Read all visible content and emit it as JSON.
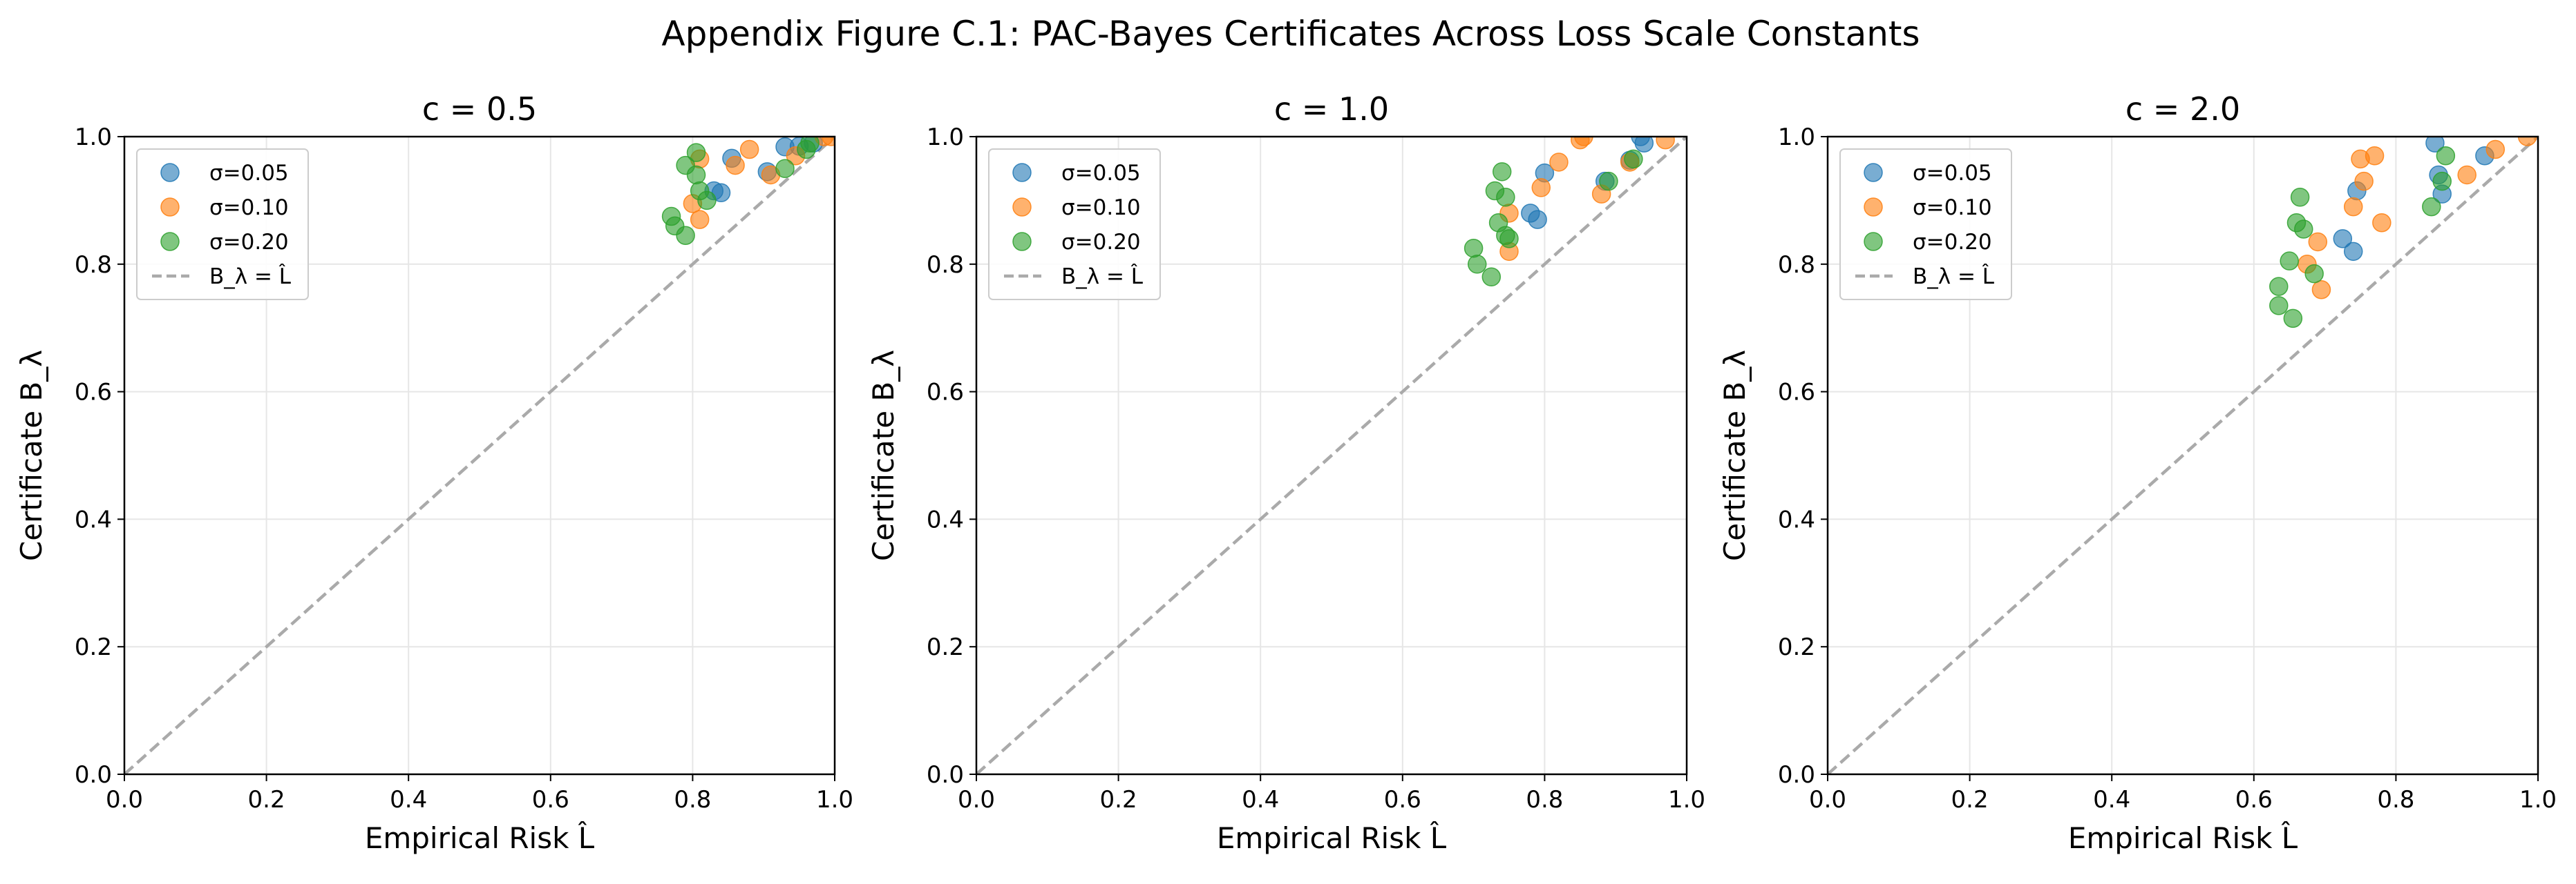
{
  "figure": {
    "suptitle": "Appendix Figure C.1: PAC-Bayes Certificates Across Loss Scale Constants"
  },
  "colors": {
    "series": [
      "#1f77b4",
      "#ff7f0e",
      "#2ca02c"
    ],
    "diagonal": "#aaaaaa",
    "grid": "#e6e6e6"
  },
  "chart_data": [
    {
      "type": "scatter",
      "title": "c = 0.5",
      "xlabel": "Empirical Risk L̂",
      "ylabel": "Certificate B_λ",
      "xlim": [
        0,
        1
      ],
      "ylim": [
        0,
        1
      ],
      "xticks": [
        "0.0",
        "0.2",
        "0.4",
        "0.6",
        "0.8",
        "1.0"
      ],
      "yticks": [
        "0.0",
        "0.2",
        "0.4",
        "0.6",
        "0.8",
        "1.0"
      ],
      "grid": true,
      "legend": "upper-left",
      "reference_line": {
        "name": "B_λ = L̂",
        "from": [
          0,
          0
        ],
        "to": [
          1,
          1
        ]
      },
      "series": [
        {
          "name": "σ=0.05",
          "points": [
            [
              0.855,
              0.966
            ],
            [
              0.83,
              0.915
            ],
            [
              0.84,
              0.912
            ],
            [
              0.905,
              0.945
            ],
            [
              0.93,
              0.984
            ],
            [
              0.95,
              0.985
            ],
            [
              0.97,
              0.99
            ]
          ]
        },
        {
          "name": "σ=0.10",
          "points": [
            [
              0.81,
              0.965
            ],
            [
              0.8,
              0.895
            ],
            [
              0.81,
              0.87
            ],
            [
              0.88,
              0.98
            ],
            [
              0.86,
              0.955
            ],
            [
              0.91,
              0.94
            ],
            [
              0.945,
              0.97
            ],
            [
              0.985,
              1.0
            ],
            [
              0.995,
              1.0
            ]
          ]
        },
        {
          "name": "σ=0.20",
          "points": [
            [
              0.79,
              0.955
            ],
            [
              0.805,
              0.975
            ],
            [
              0.805,
              0.94
            ],
            [
              0.81,
              0.915
            ],
            [
              0.82,
              0.9
            ],
            [
              0.77,
              0.875
            ],
            [
              0.775,
              0.86
            ],
            [
              0.79,
              0.845
            ],
            [
              0.93,
              0.95
            ],
            [
              0.96,
              0.98
            ],
            [
              0.965,
              0.99
            ]
          ]
        }
      ]
    },
    {
      "type": "scatter",
      "title": "c = 1.0",
      "xlabel": "Empirical Risk L̂",
      "ylabel": "Certificate B_λ",
      "xlim": [
        0,
        1
      ],
      "ylim": [
        0,
        1
      ],
      "xticks": [
        "0.0",
        "0.2",
        "0.4",
        "0.6",
        "0.8",
        "1.0"
      ],
      "yticks": [
        "0.0",
        "0.2",
        "0.4",
        "0.6",
        "0.8",
        "1.0"
      ],
      "grid": true,
      "legend": "upper-left",
      "reference_line": {
        "name": "B_λ = L̂",
        "from": [
          0,
          0
        ],
        "to": [
          1,
          1
        ]
      },
      "series": [
        {
          "name": "σ=0.05",
          "points": [
            [
              0.8,
              0.943
            ],
            [
              0.78,
              0.88
            ],
            [
              0.79,
              0.87
            ],
            [
              0.885,
              0.93
            ],
            [
              0.92,
              0.963
            ],
            [
              0.935,
              1.0
            ],
            [
              0.94,
              0.99
            ]
          ]
        },
        {
          "name": "σ=0.10",
          "points": [
            [
              0.75,
              0.88
            ],
            [
              0.75,
              0.82
            ],
            [
              0.795,
              0.92
            ],
            [
              0.82,
              0.96
            ],
            [
              0.85,
              0.995
            ],
            [
              0.855,
              1.0
            ],
            [
              0.88,
              0.91
            ],
            [
              0.92,
              0.96
            ],
            [
              0.97,
              0.995
            ]
          ]
        },
        {
          "name": "σ=0.20",
          "points": [
            [
              0.74,
              0.945
            ],
            [
              0.73,
              0.915
            ],
            [
              0.745,
              0.905
            ],
            [
              0.735,
              0.865
            ],
            [
              0.745,
              0.845
            ],
            [
              0.75,
              0.84
            ],
            [
              0.7,
              0.825
            ],
            [
              0.705,
              0.8
            ],
            [
              0.725,
              0.78
            ],
            [
              0.89,
              0.93
            ],
            [
              0.925,
              0.965
            ]
          ]
        }
      ]
    },
    {
      "type": "scatter",
      "title": "c = 2.0",
      "xlabel": "Empirical Risk L̂",
      "ylabel": "Certificate B_λ",
      "xlim": [
        0,
        1
      ],
      "ylim": [
        0,
        1
      ],
      "xticks": [
        "0.0",
        "0.2",
        "0.4",
        "0.6",
        "0.8",
        "1.0"
      ],
      "yticks": [
        "0.0",
        "0.2",
        "0.4",
        "0.6",
        "0.8",
        "1.0"
      ],
      "grid": true,
      "legend": "upper-left",
      "reference_line": {
        "name": "B_λ = L̂",
        "from": [
          0,
          0
        ],
        "to": [
          1,
          1
        ]
      },
      "series": [
        {
          "name": "σ=0.05",
          "points": [
            [
              0.855,
              0.99
            ],
            [
              0.86,
              0.94
            ],
            [
              0.865,
              0.91
            ],
            [
              0.745,
              0.915
            ],
            [
              0.725,
              0.84
            ],
            [
              0.74,
              0.82
            ],
            [
              0.925,
              0.97
            ]
          ]
        },
        {
          "name": "σ=0.10",
          "points": [
            [
              0.77,
              0.97
            ],
            [
              0.75,
              0.965
            ],
            [
              0.755,
              0.93
            ],
            [
              0.74,
              0.89
            ],
            [
              0.78,
              0.865
            ],
            [
              0.69,
              0.835
            ],
            [
              0.675,
              0.8
            ],
            [
              0.695,
              0.76
            ],
            [
              0.9,
              0.94
            ],
            [
              0.94,
              0.98
            ],
            [
              0.985,
              1.0
            ]
          ]
        },
        {
          "name": "σ=0.20",
          "points": [
            [
              0.665,
              0.905
            ],
            [
              0.87,
              0.97
            ],
            [
              0.865,
              0.93
            ],
            [
              0.85,
              0.89
            ],
            [
              0.66,
              0.865
            ],
            [
              0.67,
              0.855
            ],
            [
              0.65,
              0.805
            ],
            [
              0.685,
              0.785
            ],
            [
              0.635,
              0.765
            ],
            [
              0.635,
              0.735
            ],
            [
              0.655,
              0.715
            ]
          ]
        }
      ]
    }
  ]
}
